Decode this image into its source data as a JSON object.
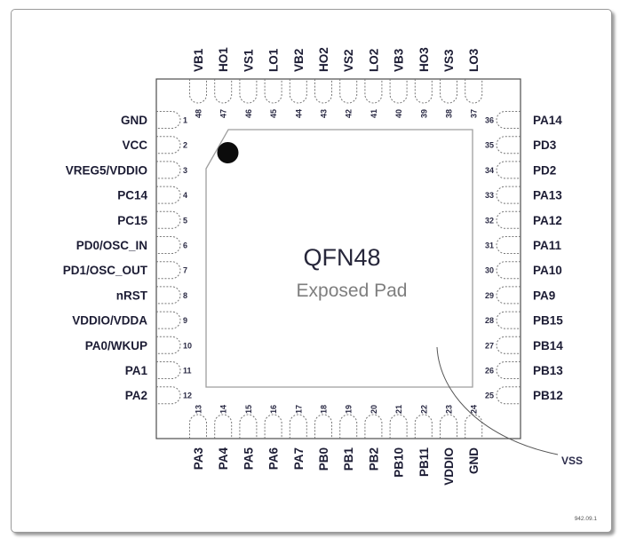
{
  "figure": {
    "package_name": "QFN48",
    "pad_label": "Exposed Pad",
    "vss_label": "VSS",
    "ref_number": "942.09.1"
  },
  "pins": {
    "top": [
      {
        "num": 48,
        "label": "VB1"
      },
      {
        "num": 47,
        "label": "HO1"
      },
      {
        "num": 46,
        "label": "VS1"
      },
      {
        "num": 45,
        "label": "LO1"
      },
      {
        "num": 44,
        "label": "VB2"
      },
      {
        "num": 43,
        "label": "HO2"
      },
      {
        "num": 42,
        "label": "VS2"
      },
      {
        "num": 41,
        "label": "LO2"
      },
      {
        "num": 40,
        "label": "VB3"
      },
      {
        "num": 39,
        "label": "HO3"
      },
      {
        "num": 38,
        "label": "VS3"
      },
      {
        "num": 37,
        "label": "LO3"
      }
    ],
    "left": [
      {
        "num": 1,
        "label": "GND"
      },
      {
        "num": 2,
        "label": "VCC"
      },
      {
        "num": 3,
        "label": "VREG5/VDDIO"
      },
      {
        "num": 4,
        "label": "PC14"
      },
      {
        "num": 5,
        "label": "PC15"
      },
      {
        "num": 6,
        "label": "PD0/OSC_IN"
      },
      {
        "num": 7,
        "label": "PD1/OSC_OUT"
      },
      {
        "num": 8,
        "label": "nRST"
      },
      {
        "num": 9,
        "label": "VDDIO/VDDA"
      },
      {
        "num": 10,
        "label": "PA0/WKUP"
      },
      {
        "num": 11,
        "label": "PA1"
      },
      {
        "num": 12,
        "label": "PA2"
      }
    ],
    "right": [
      {
        "num": 36,
        "label": "PA14"
      },
      {
        "num": 35,
        "label": "PD3"
      },
      {
        "num": 34,
        "label": "PD2"
      },
      {
        "num": 33,
        "label": "PA13"
      },
      {
        "num": 32,
        "label": "PA12"
      },
      {
        "num": 31,
        "label": "PA11"
      },
      {
        "num": 30,
        "label": "PA10"
      },
      {
        "num": 29,
        "label": "PA9"
      },
      {
        "num": 28,
        "label": "PB15"
      },
      {
        "num": 27,
        "label": "PB14"
      },
      {
        "num": 26,
        "label": "PB13"
      },
      {
        "num": 25,
        "label": "PB12"
      }
    ],
    "bottom": [
      {
        "num": 13,
        "label": "PA3"
      },
      {
        "num": 14,
        "label": "PA4"
      },
      {
        "num": 15,
        "label": "PA5"
      },
      {
        "num": 16,
        "label": "PA6"
      },
      {
        "num": 17,
        "label": "PA7"
      },
      {
        "num": 18,
        "label": "PB0"
      },
      {
        "num": 19,
        "label": "PB1"
      },
      {
        "num": 20,
        "label": "PB2"
      },
      {
        "num": 21,
        "label": "PB10"
      },
      {
        "num": 22,
        "label": "PB11"
      },
      {
        "num": 23,
        "label": "VDDIO"
      },
      {
        "num": 24,
        "label": "GND"
      }
    ]
  },
  "colors": {
    "label": "#1c1c34",
    "number": "#2a2a44",
    "package_name_text": "#26263a",
    "pad_text": "#7e7e7e",
    "vss_text": "#2b2b4a",
    "ref_text": "#555555",
    "outline": "#4d4d4d",
    "pad_outline": "#9e9e9e",
    "pin_dash": "#777777",
    "pin1_dot": "#0c0c0c",
    "frame_border": "#9a9a9a"
  }
}
